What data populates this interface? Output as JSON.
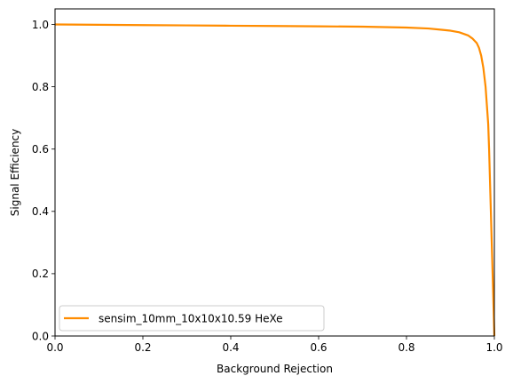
{
  "chart_data": {
    "type": "line",
    "xlabel": "Background Rejection",
    "ylabel": "Signal Efficiency",
    "xlim": [
      0,
      1
    ],
    "ylim": [
      0,
      1.05
    ],
    "xticks": [
      0.0,
      0.2,
      0.4,
      0.6,
      0.8,
      1.0
    ],
    "yticks": [
      0.0,
      0.2,
      0.4,
      0.6,
      0.8,
      1.0
    ],
    "xtick_labels": [
      "0.0",
      "0.2",
      "0.4",
      "0.6",
      "0.8",
      "1.0"
    ],
    "ytick_labels": [
      "0.0",
      "0.2",
      "0.4",
      "0.6",
      "0.8",
      "1.0"
    ],
    "grid": false,
    "legend_position": "lower-left",
    "series": [
      {
        "name": "sensim_10mm_10x10x10.59 HeXe",
        "color": "#ff8c00",
        "x": [
          0.0,
          0.1,
          0.2,
          0.3,
          0.4,
          0.5,
          0.6,
          0.7,
          0.8,
          0.85,
          0.88,
          0.9,
          0.92,
          0.94,
          0.95,
          0.96,
          0.965,
          0.97,
          0.975,
          0.98,
          0.983,
          0.986,
          0.988,
          0.99,
          0.992,
          0.994,
          0.996,
          0.998,
          1.0
        ],
        "y": [
          1.0,
          0.999,
          0.998,
          0.997,
          0.996,
          0.995,
          0.994,
          0.993,
          0.99,
          0.987,
          0.983,
          0.98,
          0.975,
          0.965,
          0.955,
          0.94,
          0.925,
          0.9,
          0.86,
          0.8,
          0.74,
          0.68,
          0.6,
          0.5,
          0.4,
          0.3,
          0.2,
          0.1,
          0.0
        ]
      }
    ]
  }
}
